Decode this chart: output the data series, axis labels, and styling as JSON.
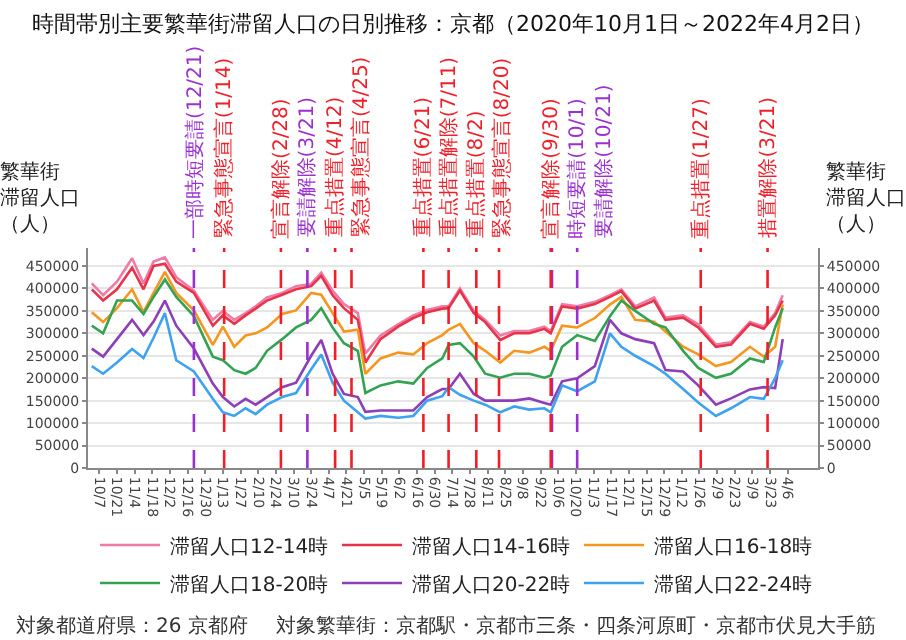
{
  "chart_data": {
    "type": "line",
    "title": "時間帯別主要繁華街滞留人口の日別推移：京都（2020年10月1日～2022年4月2日）",
    "ylabel": "繁華街滞留人口（人）",
    "y2label": "繁華街滞留人口（人）",
    "x": [
      "2020-10-01",
      "2020-10-10",
      "2020-10-21",
      "2020-11-02",
      "2020-11-11",
      "2020-11-19",
      "2020-11-28",
      "2020-12-07",
      "2020-12-21",
      "2021-01-05",
      "2021-01-13",
      "2021-01-22",
      "2021-01-31",
      "2021-02-08",
      "2021-02-17",
      "2021-03-01",
      "2021-03-12",
      "2021-03-24",
      "2021-04-01",
      "2021-04-10",
      "2021-04-19",
      "2021-04-30",
      "2021-05-06",
      "2021-05-18",
      "2021-06-01",
      "2021-06-13",
      "2021-06-24",
      "2021-07-06",
      "2021-07-11",
      "2021-07-20",
      "2021-07-31",
      "2021-08-09",
      "2021-08-21",
      "2021-09-01",
      "2021-09-13",
      "2021-09-25",
      "2021-09-30",
      "2021-10-09",
      "2021-10-21",
      "2021-11-04",
      "2021-11-16",
      "2021-11-25",
      "2021-12-06",
      "2021-12-21",
      "2021-12-30",
      "2022-01-13",
      "2022-01-25",
      "2022-02-08",
      "2022-02-20",
      "2022-03-07",
      "2022-03-18",
      "2022-03-27",
      "2022-04-02"
    ],
    "series": [
      {
        "name": "滞留人口12-14時",
        "color": "#f07aa6",
        "values": [
          411000,
          385000,
          415000,
          467000,
          411000,
          460000,
          469000,
          425000,
          395000,
          330000,
          350000,
          330000,
          345000,
          360000,
          380000,
          390000,
          405000,
          410000,
          435000,
          395000,
          365000,
          345000,
          255000,
          295000,
          320000,
          340000,
          352000,
          360000,
          360000,
          400000,
          350000,
          330000,
          295000,
          305000,
          305000,
          315000,
          305000,
          365000,
          360000,
          370000,
          385000,
          398000,
          360000,
          380000,
          335000,
          340000,
          320000,
          275000,
          280000,
          325000,
          315000,
          345000,
          385000
        ]
      },
      {
        "name": "滞留人口14-16時",
        "color": "#e8344a",
        "values": [
          398000,
          373000,
          398000,
          446000,
          398000,
          450000,
          455000,
          415000,
          390000,
          317000,
          340000,
          321000,
          340000,
          355000,
          373000,
          386000,
          398000,
          405000,
          428000,
          385000,
          356000,
          330000,
          235000,
          287000,
          315000,
          334000,
          347000,
          355000,
          356000,
          395000,
          345000,
          325000,
          285000,
          300000,
          300000,
          310000,
          300000,
          360000,
          355000,
          365000,
          381000,
          394000,
          355000,
          373000,
          330000,
          335000,
          313000,
          270000,
          275000,
          321000,
          310000,
          340000,
          373000
        ]
      },
      {
        "name": "滞留人口16-18時",
        "color": "#f5961e",
        "values": [
          347000,
          325000,
          356000,
          398000,
          347000,
          390000,
          437000,
          390000,
          351000,
          274000,
          315000,
          270000,
          295000,
          300000,
          313000,
          343000,
          351000,
          390000,
          386000,
          345000,
          304000,
          308000,
          210000,
          244000,
          257000,
          253000,
          278000,
          296000,
          308000,
          321000,
          278000,
          261000,
          235000,
          261000,
          257000,
          270000,
          261000,
          317000,
          313000,
          334000,
          364000,
          381000,
          330000,
          326000,
          304000,
          270000,
          253000,
          227000,
          236000,
          270000,
          248000,
          270000,
          364000
        ]
      },
      {
        "name": "滞留人口18-20時",
        "color": "#33a352",
        "values": [
          317000,
          300000,
          373000,
          373000,
          343000,
          381000,
          420000,
          381000,
          338000,
          248000,
          240000,
          218000,
          210000,
          223000,
          261000,
          287000,
          313000,
          330000,
          356000,
          313000,
          278000,
          261000,
          167000,
          184000,
          193000,
          188000,
          223000,
          244000,
          274000,
          278000,
          248000,
          210000,
          201000,
          210000,
          210000,
          201000,
          206000,
          270000,
          296000,
          283000,
          338000,
          373000,
          350000,
          321000,
          313000,
          261000,
          223000,
          201000,
          210000,
          244000,
          236000,
          313000,
          356000
        ]
      },
      {
        "name": "滞留人口20-22時",
        "color": "#8e3fb8",
        "values": [
          266000,
          248000,
          287000,
          330000,
          296000,
          326000,
          373000,
          317000,
          266000,
          188000,
          158000,
          137000,
          154000,
          141000,
          158000,
          180000,
          190000,
          250000,
          285000,
          210000,
          165000,
          158000,
          125000,
          128000,
          128000,
          128000,
          158000,
          176000,
          176000,
          210000,
          165000,
          150000,
          150000,
          150000,
          155000,
          145000,
          141000,
          193000,
          200000,
          227000,
          330000,
          300000,
          287000,
          278000,
          218000,
          215000,
          184000,
          141000,
          155000,
          175000,
          180000,
          178000,
          287000
        ]
      },
      {
        "name": "滞留人口22-24時",
        "color": "#3fa2f0",
        "values": [
          227000,
          210000,
          235000,
          265000,
          245000,
          290000,
          345000,
          240000,
          215000,
          154000,
          124000,
          116000,
          133000,
          120000,
          141000,
          158000,
          167000,
          220000,
          253000,
          190000,
          150000,
          124000,
          110000,
          116000,
          112000,
          116000,
          150000,
          160000,
          180000,
          163000,
          150000,
          141000,
          124000,
          137000,
          130000,
          133000,
          124000,
          184000,
          171000,
          193000,
          300000,
          270000,
          250000,
          227000,
          210000,
          176000,
          146000,
          116000,
          133000,
          158000,
          154000,
          200000,
          240000
        ]
      }
    ],
    "xlim": [
      "2020-09-28",
      "2022-04-30"
    ],
    "xticks": [
      {
        "value": "2020-10-07",
        "label": "10/7"
      },
      {
        "value": "2020-10-21",
        "label": "10/21"
      },
      {
        "value": "2020-11-04",
        "label": "11/4"
      },
      {
        "value": "2020-11-18",
        "label": "11/18"
      },
      {
        "value": "2020-12-02",
        "label": "12/2"
      },
      {
        "value": "2020-12-16",
        "label": "12/16"
      },
      {
        "value": "2020-12-30",
        "label": "12/30"
      },
      {
        "value": "2021-01-13",
        "label": "1/13"
      },
      {
        "value": "2021-01-27",
        "label": "1/27"
      },
      {
        "value": "2021-02-10",
        "label": "2/10"
      },
      {
        "value": "2021-02-24",
        "label": "2/24"
      },
      {
        "value": "2021-03-10",
        "label": "3/10"
      },
      {
        "value": "2021-03-24",
        "label": "3/24"
      },
      {
        "value": "2021-04-07",
        "label": "4/7"
      },
      {
        "value": "2021-04-21",
        "label": "4/21"
      },
      {
        "value": "2021-05-05",
        "label": "5/5"
      },
      {
        "value": "2021-05-19",
        "label": "5/19"
      },
      {
        "value": "2021-06-02",
        "label": "6/2"
      },
      {
        "value": "2021-06-16",
        "label": "6/16"
      },
      {
        "value": "2021-06-30",
        "label": "6/30"
      },
      {
        "value": "2021-07-14",
        "label": "7/14"
      },
      {
        "value": "2021-07-28",
        "label": "7/28"
      },
      {
        "value": "2021-08-11",
        "label": "8/11"
      },
      {
        "value": "2021-08-25",
        "label": "8/25"
      },
      {
        "value": "2021-09-08",
        "label": "9/8"
      },
      {
        "value": "2021-09-22",
        "label": "9/22"
      },
      {
        "value": "2021-10-06",
        "label": "10/6"
      },
      {
        "value": "2021-10-20",
        "label": "10/20"
      },
      {
        "value": "2021-11-03",
        "label": "11/3"
      },
      {
        "value": "2021-11-17",
        "label": "11/17"
      },
      {
        "value": "2021-12-01",
        "label": "12/1"
      },
      {
        "value": "2021-12-15",
        "label": "12/15"
      },
      {
        "value": "2021-12-29",
        "label": "12/29"
      },
      {
        "value": "2022-01-12",
        "label": "1/12"
      },
      {
        "value": "2022-01-26",
        "label": "1/26"
      },
      {
        "value": "2022-02-09",
        "label": "2/9"
      },
      {
        "value": "2022-02-23",
        "label": "2/23"
      },
      {
        "value": "2022-03-09",
        "label": "3/9"
      },
      {
        "value": "2022-03-23",
        "label": "3/23"
      },
      {
        "value": "2022-04-06",
        "label": "4/6"
      }
    ],
    "ylim": [
      0,
      490000
    ],
    "yticks": [
      0,
      50000,
      100000,
      150000,
      200000,
      250000,
      300000,
      350000,
      400000,
      450000
    ],
    "y2lim": [
      0,
      490000
    ],
    "y2ticks": [
      0,
      50000,
      100000,
      150000,
      200000,
      250000,
      300000,
      350000,
      400000,
      450000
    ],
    "ref_lines": [
      {
        "axis": "x",
        "value": "2020-12-21",
        "label": "一部時短要請(12/21)",
        "color": "#9b30d0",
        "line_style": "dashed"
      },
      {
        "axis": "x",
        "value": "2021-01-14",
        "label": "緊急事態宣言(1/14)",
        "color": "#f01e28",
        "line_style": "dashed"
      },
      {
        "axis": "x",
        "value": "2021-02-28",
        "label": "宣言解除(2/28)",
        "color": "#f01e28",
        "line_style": "dashed"
      },
      {
        "axis": "x",
        "value": "2021-03-21",
        "label": "要請解除(3/21)",
        "color": "#9b30d0",
        "line_style": "dashed"
      },
      {
        "axis": "x",
        "value": "2021-04-12",
        "label": "重点措置(4/12)",
        "color": "#f01e28",
        "line_style": "dashed"
      },
      {
        "axis": "x",
        "value": "2021-04-25",
        "label": "緊急事態宣言(4/25)",
        "color": "#f01e28",
        "line_style": "dashed"
      },
      {
        "axis": "x",
        "value": "2021-06-21",
        "label": "重点措置(6/21)",
        "color": "#f01e28",
        "line_style": "dashed"
      },
      {
        "axis": "x",
        "value": "2021-07-11",
        "label": "重点措置解除(7/11)",
        "color": "#f01e28",
        "line_style": "dashed"
      },
      {
        "axis": "x",
        "value": "2021-08-02",
        "label": "重点措置(8/2)",
        "color": "#f01e28",
        "line_style": "dashed"
      },
      {
        "axis": "x",
        "value": "2021-08-20",
        "label": "緊急事態宣言(8/20)",
        "color": "#f01e28",
        "line_style": "dashed"
      },
      {
        "axis": "x",
        "value": "2021-09-30",
        "label": "宣言解除(9/30)",
        "color": "#f01e28",
        "line_style": "dashed"
      },
      {
        "axis": "x",
        "value": "2021-10-01",
        "label": "時短要請(10/1)",
        "color": "#9b30d0",
        "line_style": "dashed"
      },
      {
        "axis": "x",
        "value": "2021-10-21",
        "label": "要請解除(10/21)",
        "color": "#9b30d0",
        "line_style": "dashed"
      },
      {
        "axis": "x",
        "value": "2022-01-27",
        "label": "重点措置(1/27)",
        "color": "#f01e28",
        "line_style": "dashed"
      },
      {
        "axis": "x",
        "value": "2022-03-21",
        "label": "措置解除(3/21)",
        "color": "#f01e28",
        "line_style": "dashed"
      }
    ],
    "annotations": [
      "対象都道府県：26 京都府",
      "対象繁華街：京都駅・京都市三条・四条河原町・京都市伏見大手筋"
    ],
    "grid": "y",
    "legend": "bottom",
    "marker": "none",
    "line_style": "solid"
  }
}
